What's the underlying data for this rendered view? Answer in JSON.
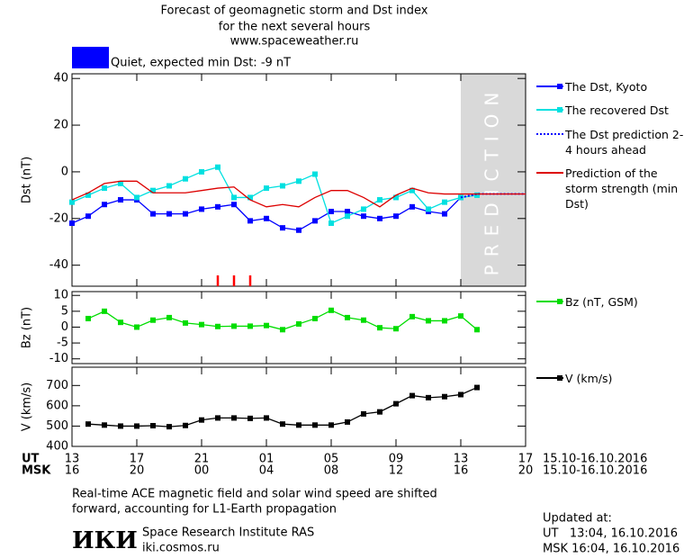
{
  "header": {
    "title_lines": [
      "Forecast of geomagnetic storm and Dst index",
      "for the next several hours",
      "www.spaceweather.ru"
    ],
    "quiet_label": "Quiet, expected min Dst: -9 nT"
  },
  "chart_data": [
    {
      "type": "line",
      "ylabel": "Dst (nT)",
      "xlim": [
        0,
        28
      ],
      "ylim": [
        -49,
        42
      ],
      "yticks": [
        -40,
        -20,
        0,
        20,
        40
      ],
      "prediction_label": "PREDICTION",
      "prediction_xlim": [
        24,
        28
      ],
      "storm_markers_x": [
        9,
        10,
        11
      ],
      "storm_marker_color": "#ff0000",
      "series": [
        {
          "name": "The Dst, Kyoto",
          "color": "#0000ff",
          "marker": "square",
          "x": [
            0,
            1,
            2,
            3,
            4,
            5,
            6,
            7,
            8,
            9,
            10,
            11,
            12,
            13,
            14,
            15,
            16,
            17,
            18,
            19,
            20,
            21,
            22,
            23,
            24
          ],
          "values": [
            -22,
            -19,
            -14,
            -12,
            -12,
            -18,
            -18,
            -18,
            -16,
            -15,
            -14,
            -21,
            -20,
            -24,
            -25,
            -21,
            -17,
            -17,
            -19,
            -20,
            -19,
            -15,
            -17,
            -18,
            -11
          ]
        },
        {
          "name": "The recovered Dst",
          "color": "#00e0e0",
          "marker": "square",
          "x": [
            0,
            1,
            2,
            3,
            4,
            5,
            6,
            7,
            8,
            9,
            10,
            11,
            12,
            13,
            14,
            15,
            16,
            17,
            18,
            19,
            20,
            21,
            22,
            23,
            24,
            25
          ],
          "values": [
            -13,
            -10,
            -7,
            -5,
            -11,
            -8,
            -6,
            -3,
            0,
            2,
            -11,
            -11,
            -7,
            -6,
            -4,
            -1,
            -22,
            -19,
            -16,
            -12,
            -11,
            -8,
            -16,
            -13,
            -11,
            -10
          ]
        },
        {
          "name": "The Dst prediction 2-4 hours ahead",
          "color": "#0000ff",
          "dash": "dotted",
          "x": [
            24,
            25,
            28
          ],
          "values": [
            -11,
            -9.5,
            -9.5
          ]
        },
        {
          "name": "Prediction of the storm strength (min Dst)",
          "color": "#dd0000",
          "x": [
            0,
            1,
            2,
            3,
            4,
            5,
            6,
            7,
            8,
            9,
            10,
            11,
            12,
            13,
            14,
            15,
            16,
            17,
            18,
            19,
            20,
            21,
            22,
            23,
            24,
            28
          ],
          "values": [
            -12,
            -9,
            -5,
            -4,
            -4,
            -9,
            -9,
            -9,
            -8,
            -7,
            -6.5,
            -12,
            -15,
            -14,
            -15,
            -11,
            -8,
            -8,
            -11,
            -15,
            -10,
            -7,
            -9,
            -9.5,
            -9.5,
            -9.5
          ]
        }
      ]
    },
    {
      "type": "line",
      "ylabel": "Bz (nT)",
      "xlim": [
        0,
        28
      ],
      "ylim": [
        -11.5,
        11.2
      ],
      "yticks": [
        -10,
        -5,
        0,
        5,
        10
      ],
      "series": [
        {
          "name": "Bz (nT, GSM)",
          "color": "#00dd00",
          "marker": "square",
          "x": [
            1,
            2,
            3,
            4,
            5,
            6,
            7,
            8,
            9,
            10,
            11,
            12,
            13,
            14,
            15,
            16,
            17,
            18,
            19,
            20,
            21,
            22,
            23,
            24,
            25
          ],
          "values": [
            2.7,
            5,
            1.5,
            0,
            2.2,
            3,
            1.3,
            0.8,
            0.2,
            0.3,
            0.3,
            0.5,
            -0.8,
            1,
            2.7,
            5.3,
            3,
            2.2,
            -0.2,
            -0.5,
            3.3,
            2,
            2,
            3.5,
            -0.8
          ]
        }
      ]
    },
    {
      "type": "line",
      "ylabel": "V (km/s)",
      "xlim": [
        0,
        28
      ],
      "ylim": [
        400,
        790
      ],
      "yticks": [
        400,
        500,
        600,
        700
      ],
      "xticks": [
        {
          "value": 0,
          "label": "13"
        },
        {
          "value": 4,
          "label": "17"
        },
        {
          "value": 8,
          "label": "21"
        },
        {
          "value": 12,
          "label": "01"
        },
        {
          "value": 16,
          "label": "05"
        },
        {
          "value": 20,
          "label": "09"
        },
        {
          "value": 24,
          "label": "13"
        },
        {
          "value": 28,
          "label": "17"
        }
      ],
      "xticks_msk": [
        "16",
        "20",
        "00",
        "04",
        "08",
        "12",
        "16",
        "20"
      ],
      "xlabel_ut": "UT",
      "xlabel_msk": "MSK",
      "date_range_ut": "15.10-16.10.2016",
      "date_range_msk": "15.10-16.10.2016",
      "series": [
        {
          "name": "V (km/s)",
          "color": "#000000",
          "marker": "square",
          "x": [
            1,
            2,
            3,
            4,
            5,
            6,
            7,
            8,
            9,
            10,
            11,
            12,
            13,
            14,
            15,
            16,
            17,
            18,
            19,
            20,
            21,
            22,
            23,
            24,
            25
          ],
          "values": [
            510,
            505,
            500,
            500,
            502,
            497,
            503,
            530,
            540,
            540,
            538,
            540,
            510,
            505,
            505,
            505,
            520,
            560,
            570,
            610,
            650,
            640,
            645,
            655,
            690
          ]
        }
      ]
    }
  ],
  "footer": {
    "note_lines": [
      "Real-time ACE magnetic field and solar wind speed are shifted",
      "forward, accounting for L1-Earth propagation"
    ],
    "logo": "ИКИ",
    "institute": "Space Research Institute RAS",
    "site": "iki.cosmos.ru",
    "updated_lines": [
      "Updated at:",
      "UT   13:04, 16.10.2016",
      "MSK 16:04, 16.10.2016"
    ]
  }
}
